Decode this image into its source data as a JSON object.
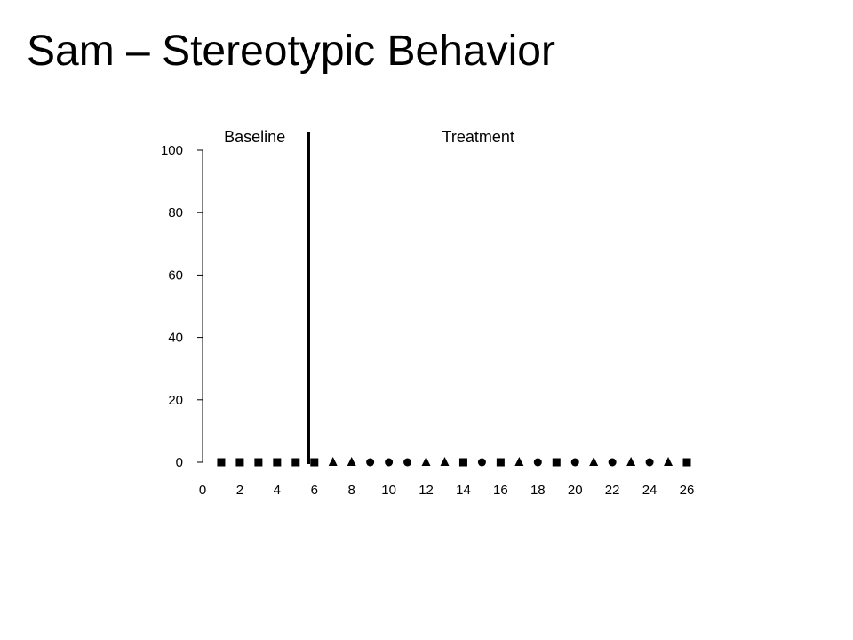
{
  "slide": {
    "title": "Sam – Stereotypic Behavior"
  },
  "chart_data": {
    "type": "scatter",
    "title": "",
    "xlabel": "",
    "ylabel": "",
    "xlim": [
      0,
      26
    ],
    "ylim": [
      0,
      100
    ],
    "x_ticks": [
      0,
      2,
      4,
      6,
      8,
      10,
      12,
      14,
      16,
      18,
      20,
      22,
      24,
      26
    ],
    "y_ticks": [
      0,
      20,
      40,
      60,
      80,
      100
    ],
    "grid": false,
    "phase_change_x": 5.7,
    "annotations": [
      {
        "text": "Baseline",
        "x": 2.8,
        "y": 104
      },
      {
        "text": "Treatment",
        "x": 14.8,
        "y": 104
      }
    ],
    "points": [
      {
        "x": 1,
        "y": 0,
        "marker": "square"
      },
      {
        "x": 2,
        "y": 0,
        "marker": "square"
      },
      {
        "x": 3,
        "y": 0,
        "marker": "square"
      },
      {
        "x": 4,
        "y": 0,
        "marker": "square"
      },
      {
        "x": 5,
        "y": 0,
        "marker": "square"
      },
      {
        "x": 6,
        "y": 0,
        "marker": "square"
      },
      {
        "x": 7,
        "y": 0,
        "marker": "triangle"
      },
      {
        "x": 8,
        "y": 0,
        "marker": "triangle"
      },
      {
        "x": 9,
        "y": 0,
        "marker": "circle"
      },
      {
        "x": 10,
        "y": 0,
        "marker": "circle"
      },
      {
        "x": 11,
        "y": 0,
        "marker": "circle"
      },
      {
        "x": 12,
        "y": 0,
        "marker": "triangle"
      },
      {
        "x": 13,
        "y": 0,
        "marker": "triangle"
      },
      {
        "x": 14,
        "y": 0,
        "marker": "square"
      },
      {
        "x": 15,
        "y": 0,
        "marker": "circle"
      },
      {
        "x": 16,
        "y": 0,
        "marker": "square"
      },
      {
        "x": 17,
        "y": 0,
        "marker": "triangle"
      },
      {
        "x": 18,
        "y": 0,
        "marker": "circle"
      },
      {
        "x": 19,
        "y": 0,
        "marker": "square"
      },
      {
        "x": 20,
        "y": 0,
        "marker": "circle"
      },
      {
        "x": 21,
        "y": 0,
        "marker": "triangle"
      },
      {
        "x": 22,
        "y": 0,
        "marker": "circle"
      },
      {
        "x": 23,
        "y": 0,
        "marker": "triangle"
      },
      {
        "x": 24,
        "y": 0,
        "marker": "circle"
      },
      {
        "x": 25,
        "y": 0,
        "marker": "triangle"
      },
      {
        "x": 26,
        "y": 0,
        "marker": "square"
      }
    ],
    "colors": {
      "marker": "#000000",
      "axis": "#000000",
      "phase_line": "#000000"
    }
  }
}
